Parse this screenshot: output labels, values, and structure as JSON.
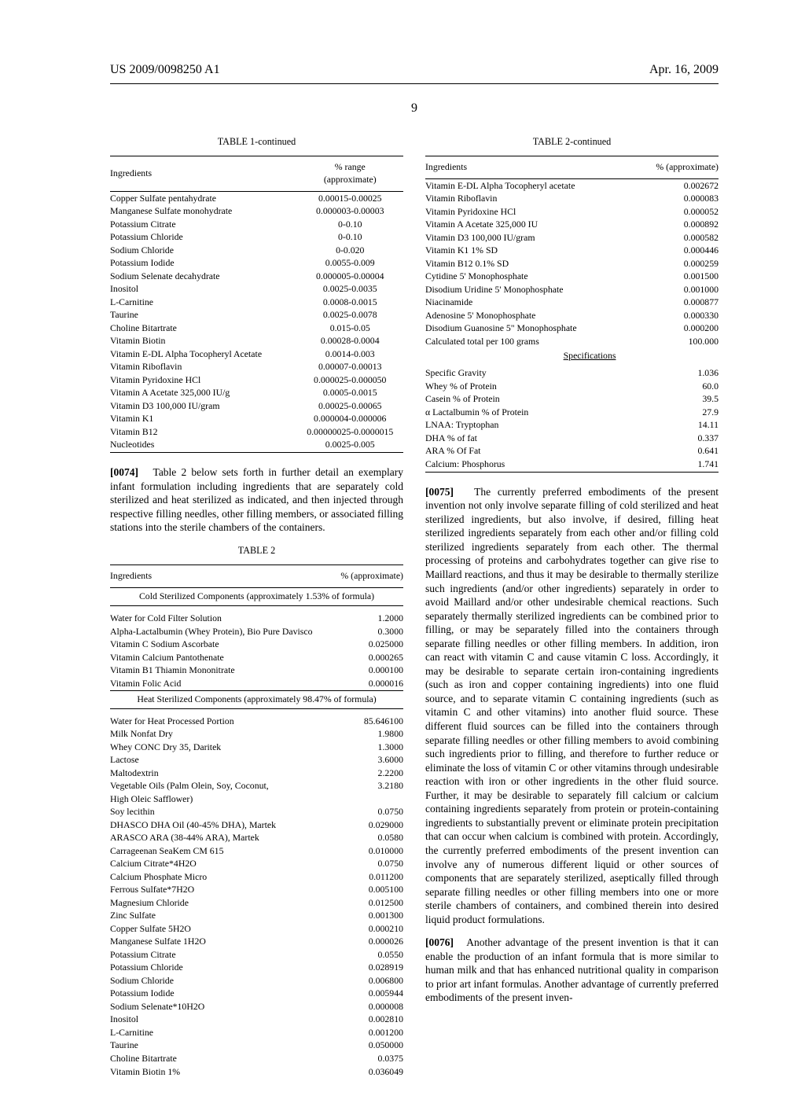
{
  "header": {
    "left": "US 2009/0098250 A1",
    "right": "Apr. 16, 2009"
  },
  "page_number": "9",
  "left_column": {
    "table1_title": "TABLE 1-continued",
    "table1_headers": {
      "c1": "Ingredients",
      "c2": "% range\n(approximate)"
    },
    "table1_rows": [
      [
        "Copper Sulfate pentahydrate",
        "0.00015-0.00025"
      ],
      [
        "Manganese Sulfate monohydrate",
        "0.000003-0.00003"
      ],
      [
        "Potassium Citrate",
        "0-0.10"
      ],
      [
        "Potassium Chloride",
        "0-0.10"
      ],
      [
        "Sodium Chloride",
        "0-0.020"
      ],
      [
        "Potassium Iodide",
        "0.0055-0.009"
      ],
      [
        "Sodium Selenate decahydrate",
        "0.000005-0.00004"
      ],
      [
        "Inositol",
        "0.0025-0.0035"
      ],
      [
        "L-Carnitine",
        "0.0008-0.0015"
      ],
      [
        "Taurine",
        "0.0025-0.0078"
      ],
      [
        "Choline Bitartrate",
        "0.015-0.05"
      ],
      [
        "Vitamin Biotin",
        "0.00028-0.0004"
      ],
      [
        "Vitamin E-DL Alpha Tocopheryl Acetate",
        "0.0014-0.003"
      ],
      [
        "Vitamin Riboflavin",
        "0.00007-0.00013"
      ],
      [
        "Vitamin Pyridoxine HCl",
        "0.000025-0.000050"
      ],
      [
        "Vitamin A Acetate 325,000 IU/g",
        "0.0005-0.0015"
      ],
      [
        "Vitamin D3 100,000 IU/gram",
        "0.00025-0.00065"
      ],
      [
        "Vitamin K1",
        "0.000004-0.000006"
      ],
      [
        "Vitamin B12",
        "0.00000025-0.0000015"
      ],
      [
        "Nucleotides",
        "0.0025-0.005"
      ]
    ],
    "para74_num": "[0074]",
    "para74_text": "Table 2 below sets forth in further detail an exemplary infant formulation including ingredients that are separately cold sterilized and heat sterilized as indicated, and then injected through respective filling needles, other filling members, or associated filling stations into the sterile chambers of the containers.",
    "table2_title": "TABLE 2",
    "table2_headers": {
      "c1": "Ingredients",
      "c2": "% (approximate)"
    },
    "table2_section1": "Cold Sterilized Components (approximately 1.53% of formula)",
    "table2_rows1": [
      [
        "Water for Cold Filter Solution",
        "1.2000"
      ],
      [
        "Alpha-Lactalbumin (Whey Protein), Bio Pure Davisco",
        "0.3000"
      ],
      [
        "Vitamin C Sodium Ascorbate",
        "0.025000"
      ],
      [
        "Vitamin Calcium Pantothenate",
        "0.000265"
      ],
      [
        "Vitamin B1 Thiamin Mononitrate",
        "0.000100"
      ],
      [
        "Vitamin Folic Acid",
        "0.000016"
      ]
    ],
    "table2_section2": "Heat Sterilized Components (approximately 98.47% of formula)",
    "table2_rows2": [
      [
        "Water for Heat Processed Portion",
        "85.646100"
      ],
      [
        "Milk Nonfat Dry",
        "1.9800"
      ],
      [
        "Whey CONC Dry 35, Daritek",
        "1.3000"
      ],
      [
        "Lactose",
        "3.6000"
      ],
      [
        "Maltodextrin",
        "2.2200"
      ],
      [
        "Vegetable Oils (Palm Olein, Soy, Coconut,",
        "3.2180"
      ],
      [
        "High Oleic Safflower)",
        ""
      ],
      [
        "Soy lecithin",
        "0.0750"
      ],
      [
        "DHASCO DHA Oil (40-45% DHA), Martek",
        "0.029000"
      ],
      [
        "ARASCO ARA (38-44% ARA), Martek",
        "0.0580"
      ],
      [
        "Carrageenan SeaKem CM 615",
        "0.010000"
      ],
      [
        "Calcium Citrate*4H2O",
        "0.0750"
      ],
      [
        "Calcium Phosphate Micro",
        "0.011200"
      ],
      [
        "Ferrous Sulfate*7H2O",
        "0.005100"
      ],
      [
        "Magnesium Chloride",
        "0.012500"
      ],
      [
        "Zinc Sulfate",
        "0.001300"
      ],
      [
        "Copper Sulfate 5H2O",
        "0.000210"
      ],
      [
        "Manganese Sulfate 1H2O",
        "0.000026"
      ],
      [
        "Potassium Citrate",
        "0.0550"
      ],
      [
        "Potassium Chloride",
        "0.028919"
      ],
      [
        "Sodium Chloride",
        "0.006800"
      ],
      [
        "Potassium Iodide",
        "0.005944"
      ],
      [
        "Sodium Selenate*10H2O",
        "0.000008"
      ],
      [
        "Inositol",
        "0.002810"
      ],
      [
        "L-Carnitine",
        "0.001200"
      ],
      [
        "Taurine",
        "0.050000"
      ],
      [
        "Choline Bitartrate",
        "0.0375"
      ],
      [
        "Vitamin Biotin 1%",
        "0.036049"
      ]
    ]
  },
  "right_column": {
    "table2c_title": "TABLE 2-continued",
    "table2c_headers": {
      "c1": "Ingredients",
      "c2": "% (approximate)"
    },
    "table2c_rows": [
      [
        "Vitamin E-DL Alpha Tocopheryl acetate",
        "0.002672"
      ],
      [
        "Vitamin Riboflavin",
        "0.000083"
      ],
      [
        "Vitamin Pyridoxine HCl",
        "0.000052"
      ],
      [
        "Vitamin A Acetate 325,000 IU",
        "0.000892"
      ],
      [
        "Vitamin D3 100,000 IU/gram",
        "0.000582"
      ],
      [
        "Vitamin K1 1% SD",
        "0.000446"
      ],
      [
        "Vitamin B12 0.1% SD",
        "0.000259"
      ],
      [
        "Cytidine 5' Monophosphate",
        "0.001500"
      ],
      [
        "Disodium Uridine 5' Monophosphate",
        "0.001000"
      ],
      [
        "Niacinamide",
        "0.000877"
      ],
      [
        "Adenosine 5' Monophosphate",
        "0.000330"
      ],
      [
        "Disodium Guanosine 5\" Monophosphate",
        "0.000200"
      ],
      [
        "Calculated total per 100 grams",
        "100.000"
      ]
    ],
    "spec_header": "Specifications",
    "spec_rows": [
      [
        "Specific Gravity",
        "1.036"
      ],
      [
        "Whey % of Protein",
        "60.0"
      ],
      [
        "Casein % of Protein",
        "39.5"
      ],
      [
        "α Lactalbumin % of Protein",
        "27.9"
      ],
      [
        "LNAA: Tryptophan",
        "14.11"
      ],
      [
        "DHA % of fat",
        "0.337"
      ],
      [
        "ARA % Of Fat",
        "0.641"
      ],
      [
        "Calcium: Phosphorus",
        "1.741"
      ]
    ],
    "para75_num": "[0075]",
    "para75_text": "The currently preferred embodiments of the present invention not only involve separate filling of cold sterilized and heat sterilized ingredients, but also involve, if desired, filling heat sterilized ingredients separately from each other and/or filling cold sterilized ingredients separately from each other. The thermal processing of proteins and carbohydrates together can give rise to Maillard reactions, and thus it may be desirable to thermally sterilize such ingredients (and/or other ingredients) separately in order to avoid Maillard and/or other undesirable chemical reactions. Such separately thermally sterilized ingredients can be combined prior to filling, or may be separately filled into the containers through separate filling needles or other filling members. In addition, iron can react with vitamin C and cause vitamin C loss. Accordingly, it may be desirable to separate certain iron-containing ingredients (such as iron and copper containing ingredients) into one fluid source, and to separate vitamin C containing ingredients (such as vitamin C and other vitamins) into another fluid source. These different fluid sources can be filled into the containers through separate filling needles or other filling members to avoid combining such ingredients prior to filling, and therefore to further reduce or eliminate the loss of vitamin C or other vitamins through undesirable reaction with iron or other ingredients in the other fluid source. Further, it may be desirable to separately fill calcium or calcium containing ingredients separately from protein or protein-containing ingredients to substantially prevent or eliminate protein precipitation that can occur when calcium is combined with protein. Accordingly, the currently preferred embodiments of the present invention can involve any of numerous different liquid or other sources of components that are separately sterilized, aseptically filled through separate filling needles or other filling members into one or more sterile chambers of containers, and combined therein into desired liquid product formulations.",
    "para76_num": "[0076]",
    "para76_text": "Another advantage of the present invention is that it can enable the production of an infant formula that is more similar to human milk and that has enhanced nutritional quality in comparison to prior art infant formulas. Another advantage of currently preferred embodiments of the present inven-"
  }
}
